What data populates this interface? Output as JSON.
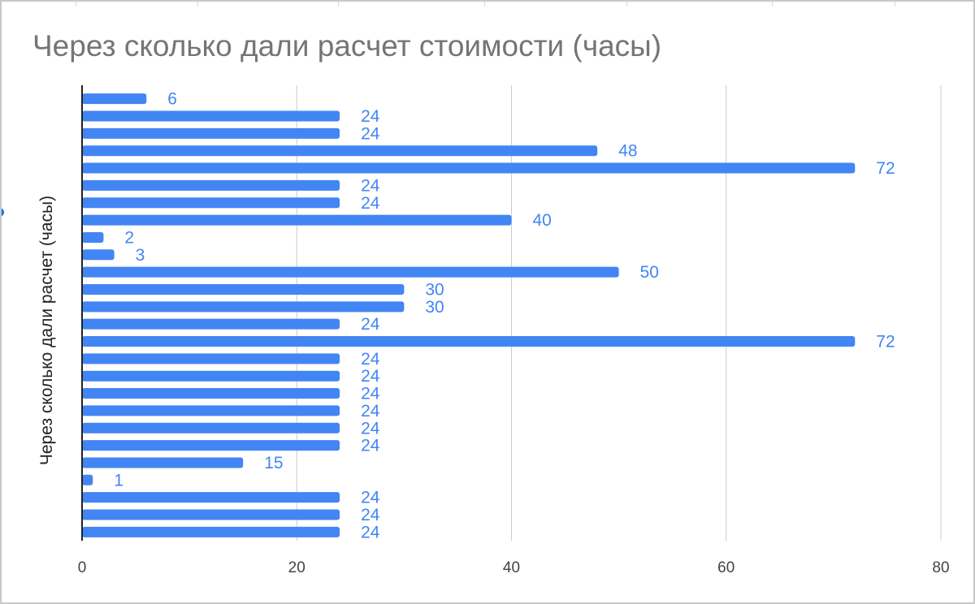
{
  "chart_data": {
    "type": "bar",
    "orientation": "horizontal",
    "title": "Через сколько дали расчет стоимости (часы)",
    "ylabel": "Через сколько дали расчет (часы)",
    "xlabel": "",
    "values": [
      6,
      24,
      24,
      48,
      72,
      24,
      24,
      40,
      2,
      3,
      50,
      30,
      30,
      24,
      72,
      24,
      24,
      24,
      24,
      24,
      24,
      15,
      1,
      24,
      24,
      24
    ],
    "xlim": [
      0,
      80
    ],
    "xticks": [
      "0",
      "20",
      "40",
      "60",
      "80"
    ],
    "grid": true,
    "data_labels": true,
    "legend": "none",
    "bar_color": "#4285f4",
    "label_color": "#4285f4"
  }
}
